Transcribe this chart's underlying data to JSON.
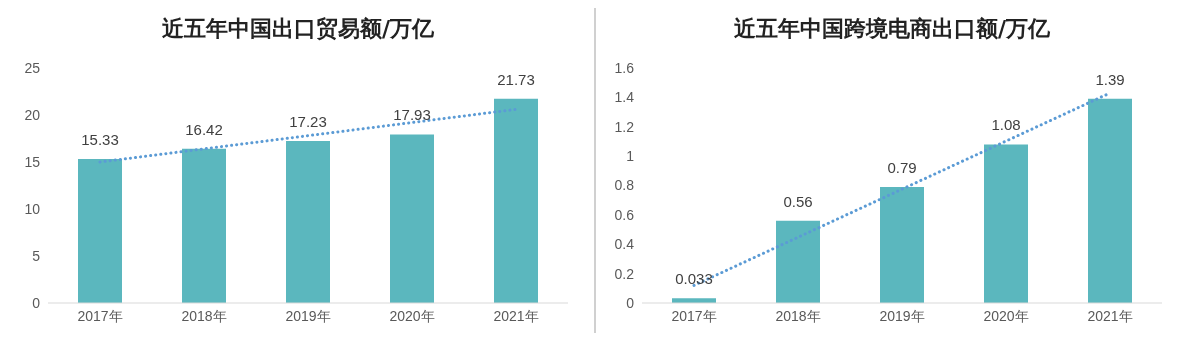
{
  "chart_data": [
    {
      "type": "bar",
      "title": "近五年中国出口贸易额/万亿",
      "categories": [
        "2017年",
        "2018年",
        "2019年",
        "2020年",
        "2021年"
      ],
      "series": [
        {
          "color": "#5bb7be",
          "values": [
            15.33,
            16.42,
            17.23,
            17.93,
            21.73
          ],
          "value_labels": [
            "15.33",
            "16.42",
            "17.23",
            "17.93",
            "21.73"
          ]
        },
        {
          "type": "line",
          "color": "#5b9bd5",
          "x": [
            "2017年",
            "2021年"
          ],
          "values": [
            15.0,
            20.6
          ],
          "line_style": "dotted",
          "marker": "none"
        }
      ],
      "ylim": [
        0,
        25
      ],
      "yticks": [
        0,
        5,
        10,
        15,
        20,
        25
      ],
      "grid": false,
      "legend": false
    },
    {
      "type": "bar",
      "title": "近五年中国跨境电商出口额/万亿",
      "categories": [
        "2017年",
        "2018年",
        "2019年",
        "2020年",
        "2021年"
      ],
      "series": [
        {
          "color": "#5bb7be",
          "values": [
            0.033,
            0.56,
            0.79,
            1.08,
            1.39
          ],
          "value_labels": [
            "0.033",
            "0.56",
            "0.79",
            "1.08",
            "1.39"
          ]
        },
        {
          "type": "line",
          "color": "#5b9bd5",
          "x": [
            "2017年",
            "2021年"
          ],
          "values": [
            0.12,
            1.43
          ],
          "line_style": "dotted",
          "marker": "none"
        }
      ],
      "ylim": [
        0,
        1.6
      ],
      "yticks": [
        0,
        0.2,
        0.4,
        0.6,
        0.8,
        1,
        1.2,
        1.4,
        1.6
      ],
      "grid": false,
      "legend": false
    }
  ]
}
